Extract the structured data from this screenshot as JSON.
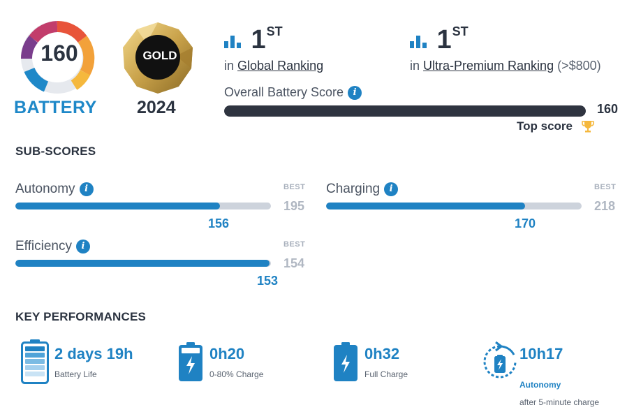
{
  "badge": {
    "score": "160",
    "label": "BATTERY",
    "medal": "GOLD",
    "year": "2024"
  },
  "ranking": {
    "global": {
      "rank": "1",
      "suffix": "ST",
      "prefix": "in",
      "link": "Global Ranking"
    },
    "segment": {
      "rank": "1",
      "suffix": "ST",
      "prefix": "in",
      "link": "Ultra-Premium Ranking",
      "range": "(>$800)"
    }
  },
  "overall": {
    "label": "Overall Battery Score",
    "value": "160",
    "fill_percent": 100,
    "top_score": "Top score"
  },
  "subscores": {
    "title": "SUB-SCORES",
    "best_tag": "BEST",
    "items": [
      {
        "label": "Autonomy",
        "score": "156",
        "best": "195",
        "fill_percent": 80
      },
      {
        "label": "Charging",
        "score": "170",
        "best": "218",
        "fill_percent": 78
      },
      {
        "label": "Efficiency",
        "score": "153",
        "best": "154",
        "fill_percent": 99.4
      }
    ]
  },
  "key_performances": {
    "title": "KEY PERFORMANCES",
    "items": [
      {
        "value": "2 days 19h",
        "label": "Battery Life",
        "icon": "battery-full-icon"
      },
      {
        "value": "0h20",
        "label": "0-80% Charge",
        "icon": "battery-charging-icon"
      },
      {
        "value": "0h32",
        "label": "Full Charge",
        "icon": "battery-charging-icon"
      },
      {
        "value": "10h17",
        "label": "Autonomy",
        "sublabel": "after 5-minute charge",
        "icon": "quick-charge-timer-icon"
      }
    ]
  },
  "colors": {
    "accent": "#1f82c3",
    "dark": "#2f3440",
    "bar_track": "#cdd3dc",
    "gold": "#c9a24a"
  }
}
